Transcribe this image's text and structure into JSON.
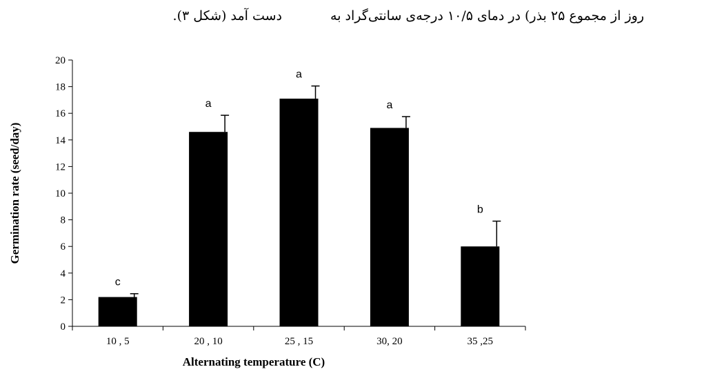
{
  "header": {
    "text_right": "روز از مجموع ۲۵ بذر) در دمای ۱۰/۵ درجه‌ی سانتی‌گراد به",
    "text_left": "دست آمد (شکل ۳)."
  },
  "chart_data": {
    "type": "bar",
    "categories": [
      "10 , 5",
      "20 , 10",
      "25 , 15",
      "30, 20",
      "35 ,25"
    ],
    "values": [
      2.2,
      14.6,
      17.1,
      14.9,
      6.0
    ],
    "errors": [
      0.25,
      1.25,
      0.95,
      0.85,
      1.9
    ],
    "significance": [
      "c",
      "a",
      "a",
      "a",
      "b"
    ],
    "xlabel": "Alternating temperature (C)",
    "ylabel": "Germination rate (seed/day)",
    "ylim": [
      0,
      20
    ],
    "yticks": [
      0,
      2,
      4,
      6,
      8,
      10,
      12,
      14,
      16,
      18,
      20
    ],
    "bar_color": "#000000",
    "grid": false,
    "legend": "none"
  }
}
